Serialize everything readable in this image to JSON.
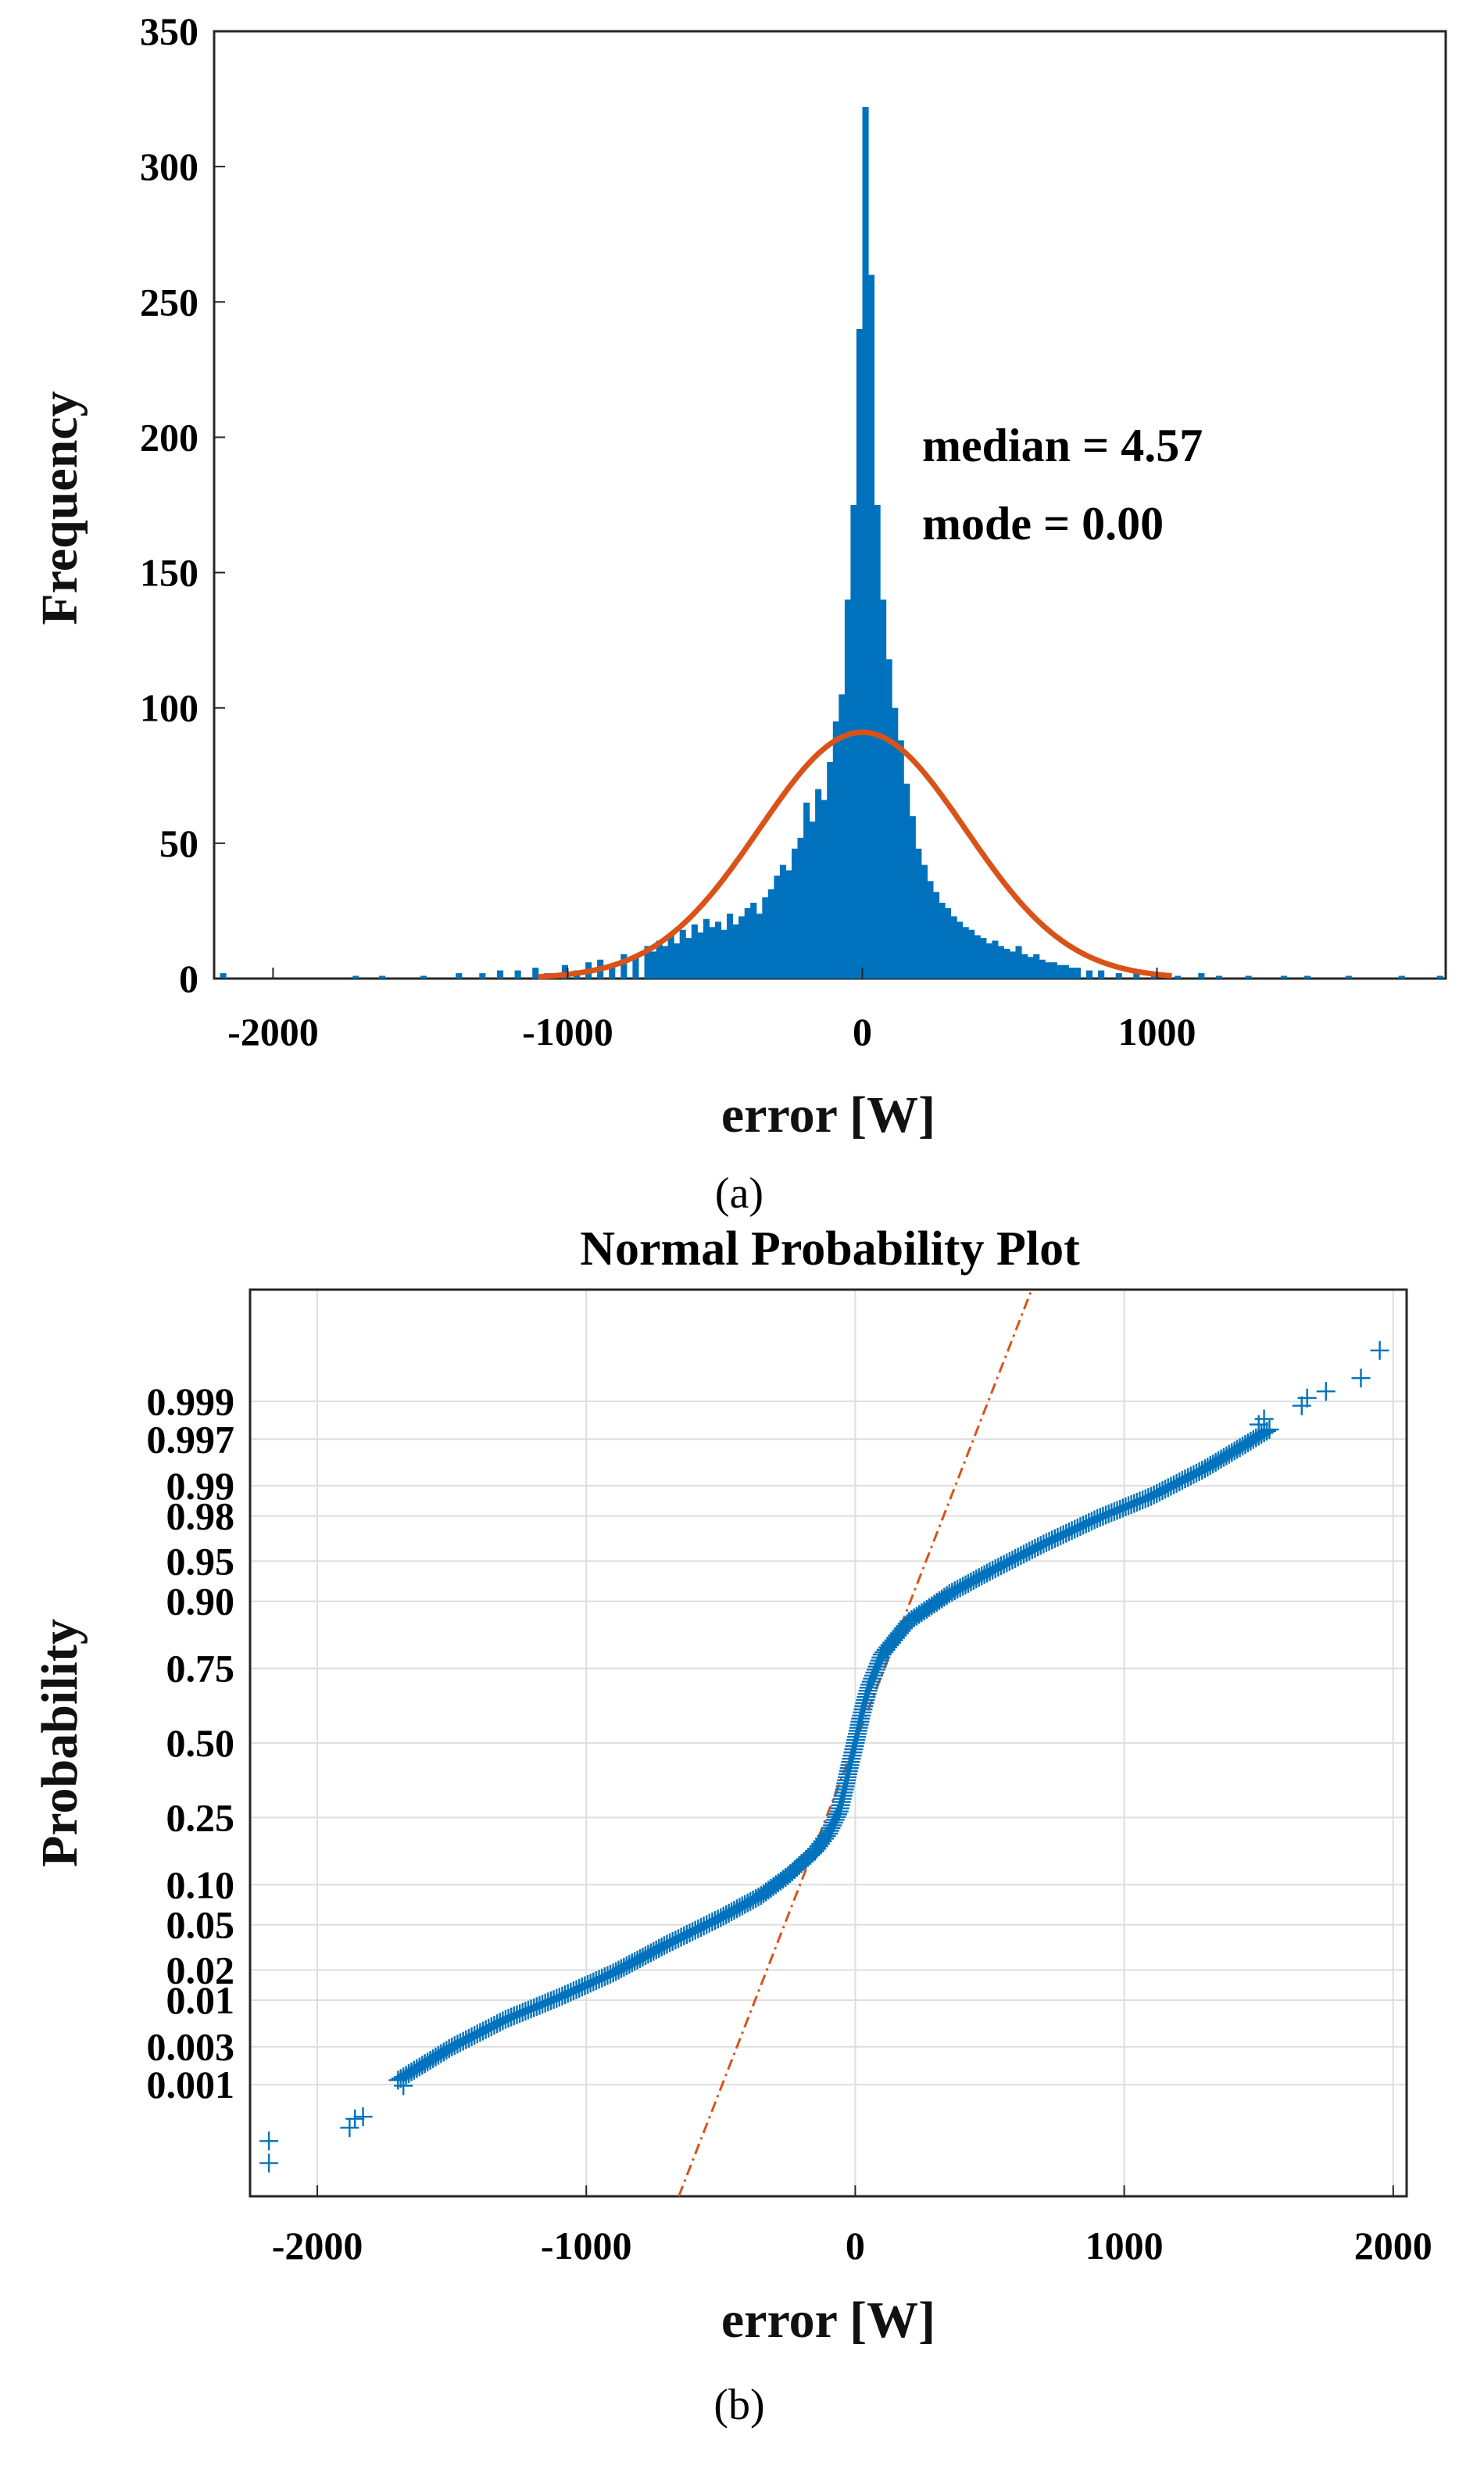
{
  "colors": {
    "bar": "#0072BD",
    "fit": "#D95319",
    "marker": "#0072BD",
    "refline": "#D95319",
    "grid": "#dedede"
  },
  "chart_data": [
    {
      "type": "bar",
      "subtype": "histogram",
      "xlabel": "error [W]",
      "ylabel": "Frequency",
      "caption": "(a)",
      "xlim": [
        -2200,
        1980
      ],
      "ylim": [
        0,
        350
      ],
      "xticks": [
        -2000,
        -1000,
        0,
        1000
      ],
      "xtick_labels": [
        "-2000",
        "-1000",
        "0",
        "1000"
      ],
      "yticks": [
        0,
        50,
        100,
        150,
        200,
        250,
        300,
        350
      ],
      "ytick_labels": [
        "0",
        "50",
        "100",
        "150",
        "200",
        "250",
        "300",
        "350"
      ],
      "annotations": [
        "median = 4.57",
        "mode = 0.00"
      ],
      "bin_width": 20,
      "bins": [
        [
          -2180,
          2
        ],
        [
          -1730,
          1
        ],
        [
          -1640,
          1
        ],
        [
          -1500,
          1
        ],
        [
          -1380,
          2
        ],
        [
          -1300,
          2
        ],
        [
          -1240,
          3
        ],
        [
          -1180,
          3
        ],
        [
          -1120,
          4
        ],
        [
          -1080,
          2
        ],
        [
          -1020,
          5
        ],
        [
          -980,
          3
        ],
        [
          -940,
          6
        ],
        [
          -900,
          7
        ],
        [
          -860,
          5
        ],
        [
          -820,
          9
        ],
        [
          -780,
          8
        ],
        [
          -740,
          12
        ],
        [
          -720,
          10
        ],
        [
          -700,
          14
        ],
        [
          -680,
          12
        ],
        [
          -660,
          16
        ],
        [
          -640,
          13
        ],
        [
          -620,
          18
        ],
        [
          -600,
          15
        ],
        [
          -580,
          20
        ],
        [
          -560,
          17
        ],
        [
          -540,
          22
        ],
        [
          -520,
          19
        ],
        [
          -500,
          21
        ],
        [
          -480,
          18
        ],
        [
          -460,
          24
        ],
        [
          -440,
          20
        ],
        [
          -420,
          23
        ],
        [
          -400,
          26
        ],
        [
          -380,
          28
        ],
        [
          -360,
          24
        ],
        [
          -340,
          30
        ],
        [
          -320,
          33
        ],
        [
          -300,
          38
        ],
        [
          -280,
          42
        ],
        [
          -260,
          40
        ],
        [
          -240,
          48
        ],
        [
          -220,
          52
        ],
        [
          -200,
          65
        ],
        [
          -180,
          58
        ],
        [
          -160,
          70
        ],
        [
          -140,
          66
        ],
        [
          -120,
          80
        ],
        [
          -100,
          95
        ],
        [
          -80,
          105
        ],
        [
          -60,
          140
        ],
        [
          -40,
          175
        ],
        [
          -20,
          240
        ],
        [
          0,
          322
        ],
        [
          20,
          260
        ],
        [
          40,
          175
        ],
        [
          60,
          140
        ],
        [
          80,
          118
        ],
        [
          100,
          100
        ],
        [
          120,
          88
        ],
        [
          140,
          72
        ],
        [
          160,
          60
        ],
        [
          180,
          48
        ],
        [
          200,
          42
        ],
        [
          220,
          36
        ],
        [
          240,
          32
        ],
        [
          260,
          28
        ],
        [
          280,
          26
        ],
        [
          300,
          23
        ],
        [
          320,
          21
        ],
        [
          340,
          19
        ],
        [
          360,
          18
        ],
        [
          380,
          16
        ],
        [
          400,
          15
        ],
        [
          420,
          13
        ],
        [
          440,
          14
        ],
        [
          460,
          12
        ],
        [
          480,
          11
        ],
        [
          500,
          10
        ],
        [
          520,
          12
        ],
        [
          540,
          9
        ],
        [
          560,
          8
        ],
        [
          580,
          9
        ],
        [
          600,
          7
        ],
        [
          620,
          6
        ],
        [
          640,
          6
        ],
        [
          660,
          5
        ],
        [
          680,
          5
        ],
        [
          700,
          4
        ],
        [
          720,
          4
        ],
        [
          760,
          3
        ],
        [
          800,
          3
        ],
        [
          860,
          2
        ],
        [
          920,
          2
        ],
        [
          980,
          2
        ],
        [
          1060,
          1
        ],
        [
          1140,
          2
        ],
        [
          1200,
          1
        ],
        [
          1300,
          1
        ],
        [
          1420,
          1
        ],
        [
          1500,
          1
        ],
        [
          1640,
          1
        ],
        [
          1820,
          1
        ],
        [
          1950,
          1
        ]
      ],
      "series": [
        {
          "name": "histogram",
          "kind": "bar"
        },
        {
          "name": "normal fit",
          "kind": "line",
          "mu": 0,
          "sigma": 350,
          "peak": 91
        }
      ]
    },
    {
      "type": "scatter",
      "title": "Normal Probability Plot",
      "xlabel": "error [W]",
      "ylabel": "Probability",
      "caption": "(b)",
      "xlim": [
        -2250,
        2050
      ],
      "xticks": [
        -2000,
        -1000,
        0,
        1000,
        2000
      ],
      "xtick_labels": [
        "-2000",
        "-1000",
        "0",
        "1000",
        "2000"
      ],
      "ylim_z": [
        -4.1,
        4.1
      ],
      "yticks": [
        0.001,
        0.003,
        0.01,
        0.02,
        0.05,
        0.1,
        0.25,
        0.5,
        0.75,
        0.9,
        0.95,
        0.98,
        0.99,
        0.997,
        0.999
      ],
      "ytick_labels": [
        "0.001",
        "0.003",
        "0.01",
        "0.02",
        "0.05",
        "0.10",
        "0.25",
        "0.50",
        "0.75",
        "0.90",
        "0.95",
        "0.98",
        "0.99",
        "0.997",
        "0.999"
      ],
      "reference_line": {
        "x_at_z0": 0,
        "x_per_z": 160
      },
      "curve_points": [
        [
          -1700,
          -3.05
        ],
        [
          -1500,
          -2.75
        ],
        [
          -1300,
          -2.5
        ],
        [
          -1100,
          -2.3
        ],
        [
          -900,
          -2.08
        ],
        [
          -700,
          -1.82
        ],
        [
          -500,
          -1.58
        ],
        [
          -350,
          -1.38
        ],
        [
          -250,
          -1.2
        ],
        [
          -150,
          -0.98
        ],
        [
          -100,
          -0.82
        ],
        [
          -60,
          -0.62
        ],
        [
          -40,
          -0.42
        ],
        [
          -20,
          -0.2
        ],
        [
          0,
          0.0
        ],
        [
          20,
          0.22
        ],
        [
          50,
          0.5
        ],
        [
          100,
          0.8
        ],
        [
          200,
          1.1
        ],
        [
          350,
          1.35
        ],
        [
          500,
          1.55
        ],
        [
          700,
          1.8
        ],
        [
          900,
          2.03
        ],
        [
          1100,
          2.23
        ],
        [
          1300,
          2.48
        ],
        [
          1450,
          2.7
        ],
        [
          1550,
          2.85
        ]
      ],
      "outliers": [
        [
          -2180,
          -3.8
        ],
        [
          -2180,
          -3.6
        ],
        [
          -1880,
          -3.48
        ],
        [
          -1860,
          -3.4
        ],
        [
          -1830,
          -3.38
        ],
        [
          -1680,
          -3.1
        ],
        [
          1500,
          2.88
        ],
        [
          1520,
          2.93
        ],
        [
          1660,
          3.05
        ],
        [
          1680,
          3.12
        ],
        [
          1750,
          3.18
        ],
        [
          1880,
          3.3
        ],
        [
          1950,
          3.55
        ]
      ]
    }
  ]
}
